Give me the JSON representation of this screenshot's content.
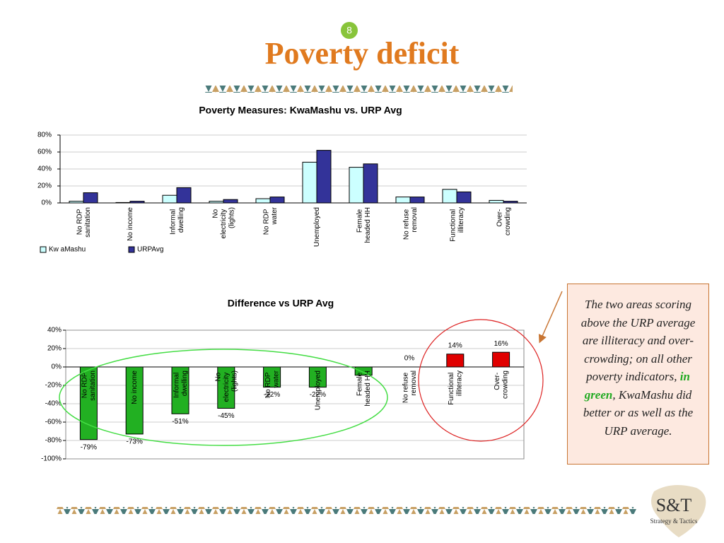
{
  "slide_number": "8",
  "title": "Poverty deficit",
  "chart_data": [
    {
      "type": "grouped_bar",
      "title": "Poverty Measures: KwaMashu vs. URP Avg",
      "categories": [
        "No RDP sanitation",
        "No income",
        "Informal dwelling",
        "No electricity (lights)",
        "No RDP water",
        "Unemployed",
        "Female headed HH",
        "No refuse removal",
        "Functional illiteracy",
        "Over- crowding"
      ],
      "series": [
        {
          "name": "Kw aMashu",
          "color": "#ccffff",
          "values": [
            2,
            0.5,
            9,
            2,
            5,
            48,
            42,
            7,
            16,
            3
          ]
        },
        {
          "name": "URPAvg",
          "color": "#333399",
          "values": [
            12,
            2,
            18,
            4,
            7,
            62,
            46,
            7,
            13,
            2
          ]
        }
      ],
      "ylim": [
        0,
        80
      ],
      "yticks": [
        {
          "value": 0,
          "label": "0%"
        },
        {
          "value": 20,
          "label": "20%"
        },
        {
          "value": 40,
          "label": "40%"
        },
        {
          "value": 60,
          "label": "60%"
        },
        {
          "value": 80,
          "label": "80%"
        }
      ],
      "grid": true,
      "legend": "bottom-left"
    },
    {
      "type": "bar",
      "title": "Difference vs URP Avg",
      "categories": [
        "No RDP sanitation",
        "No income",
        "Informal dwelling",
        "No electricity (lights)",
        "No RDP water",
        "Unemployed",
        "Female headed HH",
        "No refuse removal",
        "Functional illiteracy",
        "Over- crowding"
      ],
      "values": [
        -79,
        -73,
        -51,
        -45,
        -22,
        -22,
        -9,
        0,
        14,
        16
      ],
      "value_labels": [
        "-79%",
        "-73%",
        "-51%",
        "-45%",
        "-22%",
        "-22%",
        null,
        "0%",
        "14%",
        "16%"
      ],
      "colors": [
        "#22b022",
        "#22b022",
        "#22b022",
        "#22b022",
        "#22b022",
        "#22b022",
        "#22b022",
        "#22b022",
        "#e00000",
        "#e00000"
      ],
      "ylim": [
        -100,
        40
      ],
      "yticks": [
        {
          "value": -100,
          "label": "-100%"
        },
        {
          "value": -80,
          "label": "-80%"
        },
        {
          "value": -60,
          "label": "-60%"
        },
        {
          "value": -40,
          "label": "-40%"
        },
        {
          "value": -20,
          "label": "-20%"
        },
        {
          "value": 0,
          "label": "0%"
        },
        {
          "value": 20,
          "label": "20%"
        },
        {
          "value": 40,
          "label": "40%"
        }
      ],
      "grid": true
    }
  ],
  "callout": {
    "text_before": "The two areas scoring above the URP average are illiteracy and over-crowding; on all other poverty indicators, ",
    "highlight": "in green",
    "text_after": ", KwaMashu did better or as well as the URP average."
  },
  "logo": {
    "name": "S&T",
    "tagline": "Strategy & Tactics"
  }
}
